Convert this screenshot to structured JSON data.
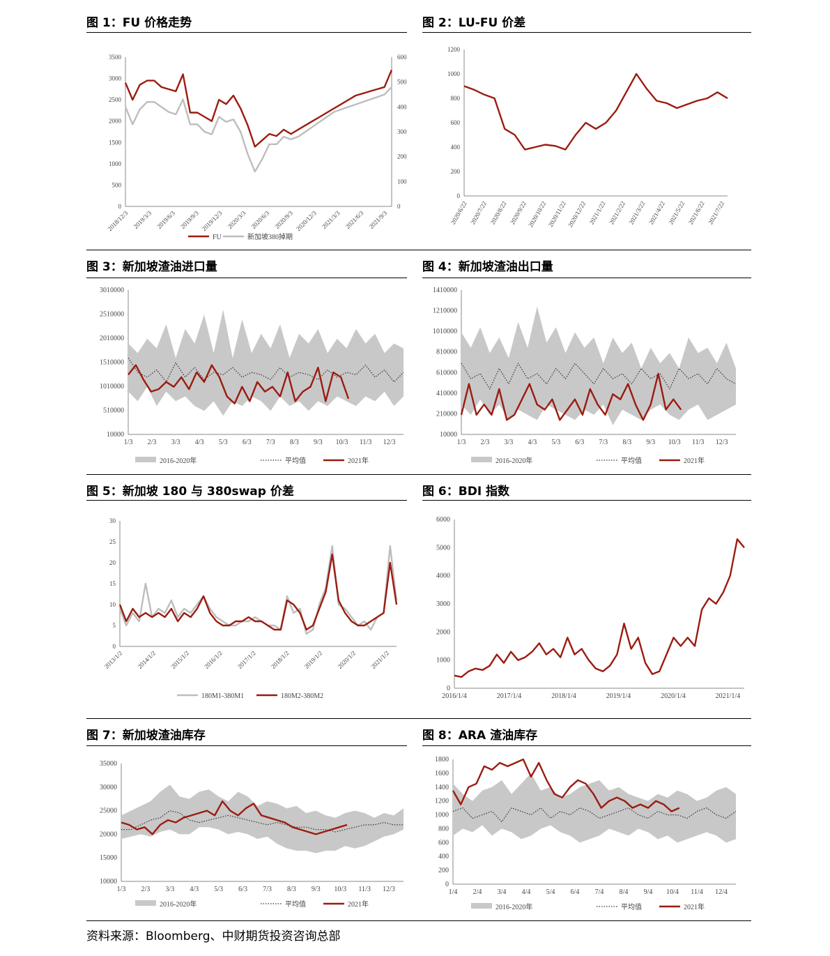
{
  "source": "资料来源：Bloomberg、中财期货投资咨询总部",
  "colors": {
    "red": "#9b1b10",
    "gray": "#bdbdbd",
    "dark": "#333333"
  },
  "chart_data": [
    {
      "id": "c1",
      "type": "line",
      "title": "图 1：FU 价格走势",
      "ylim": [
        0,
        3500
      ],
      "yticks": [
        0,
        500,
        1000,
        1500,
        2000,
        2500,
        3000,
        3500
      ],
      "y2lim": [
        0,
        600
      ],
      "y2ticks": [
        0,
        100,
        200,
        300,
        400,
        500,
        600
      ],
      "xlabels": [
        "2018/12/3",
        "2019/3/3",
        "2019/6/3",
        "2019/9/3",
        "2019/12/3",
        "2020/3/3",
        "2020/6/3",
        "2020/9/3",
        "2020/12/3",
        "2021/3/3",
        "2021/6/3",
        "2021/9/3"
      ],
      "series": [
        {
          "name": "FU",
          "axis": "left",
          "color": "red",
          "values": [
            2900,
            2500,
            2850,
            2950,
            2950,
            2800,
            2750,
            2700,
            3100,
            2200,
            2200,
            2100,
            2000,
            2500,
            2400,
            2600,
            2300,
            1900,
            1400,
            1550,
            1700,
            1650,
            1800,
            1700,
            1800,
            1900,
            2000,
            2100,
            2200,
            2300,
            2400,
            2500,
            2600,
            2650,
            2700,
            2750,
            2800,
            3200
          ]
        },
        {
          "name": "新加坡380掉期",
          "axis": "right",
          "color": "gray",
          "values": [
            400,
            330,
            390,
            420,
            420,
            400,
            380,
            370,
            430,
            330,
            330,
            300,
            290,
            360,
            340,
            350,
            300,
            210,
            140,
            190,
            250,
            250,
            280,
            270,
            280,
            300,
            320,
            340,
            360,
            380,
            390,
            400,
            410,
            420,
            430,
            440,
            450,
            480
          ]
        }
      ]
    },
    {
      "id": "c2",
      "type": "line",
      "title": "图 2：LU-FU 价差",
      "ylim": [
        0,
        1200
      ],
      "yticks": [
        0,
        200,
        400,
        600,
        800,
        1000,
        1200
      ],
      "xlabels": [
        "2020/6/22",
        "2020/7/22",
        "2020/8/22",
        "2020/9/22",
        "2020/10/22",
        "2020/11/22",
        "2020/12/22",
        "2021/1/22",
        "2021/2/22",
        "2021/3/22",
        "2021/4/22",
        "2021/5/22",
        "2021/6/22",
        "2021/7/22"
      ],
      "series": [
        {
          "name": "LU-FU",
          "color": "red",
          "values": [
            900,
            870,
            830,
            800,
            550,
            500,
            380,
            400,
            420,
            410,
            380,
            500,
            600,
            550,
            600,
            700,
            850,
            1000,
            880,
            780,
            760,
            720,
            750,
            780,
            800,
            850,
            800
          ]
        }
      ]
    },
    {
      "id": "c3",
      "type": "area",
      "title": "图 3：新加坡渣油进口量",
      "ylim": [
        10000,
        3010000
      ],
      "yticks": [
        10000,
        510000,
        1010000,
        1510000,
        2010000,
        2510000,
        3010000
      ],
      "xlabels": [
        "1/3",
        "2/3",
        "3/3",
        "4/3",
        "5/3",
        "6/3",
        "7/3",
        "8/3",
        "9/3",
        "10/3",
        "11/3",
        "12/3"
      ],
      "band_upper": [
        1900000,
        1700000,
        2000000,
        1800000,
        2300000,
        1600000,
        2200000,
        1900000,
        2500000,
        1700000,
        2600000,
        1600000,
        2400000,
        1700000,
        2100000,
        1800000,
        2300000,
        1600000,
        2100000,
        1900000,
        2200000,
        1700000,
        2000000,
        1800000,
        2200000,
        1900000,
        2100000,
        1700000,
        1900000,
        1800000
      ],
      "band_lower": [
        900000,
        700000,
        1000000,
        600000,
        900000,
        700000,
        800000,
        600000,
        500000,
        700000,
        400000,
        700000,
        600000,
        800000,
        700000,
        500000,
        800000,
        600000,
        700000,
        500000,
        700000,
        600000,
        800000,
        700000,
        600000,
        800000,
        700000,
        900000,
        600000,
        800000
      ],
      "series": [
        {
          "name": "2016-2020年",
          "role": "band"
        },
        {
          "name": "平均值",
          "color": "dark",
          "dotted": true,
          "values": [
            1600000,
            1300000,
            1200000,
            1350000,
            1100000,
            1500000,
            1200000,
            1400000,
            1150000,
            1300000,
            1250000,
            1400000,
            1200000,
            1300000,
            1250000,
            1150000,
            1400000,
            1200000,
            1300000,
            1250000,
            1150000,
            1350000,
            1200000,
            1300000,
            1250000,
            1450000,
            1200000,
            1350000,
            1100000,
            1300000
          ]
        },
        {
          "name": "2021年",
          "color": "red",
          "values": [
            1250000,
            1450000,
            1150000,
            900000,
            950000,
            1100000,
            1000000,
            1200000,
            950000,
            1300000,
            1100000,
            1450000,
            1200000,
            800000,
            650000,
            1000000,
            700000,
            1100000,
            900000,
            1000000,
            800000,
            1300000,
            700000,
            900000,
            1000000,
            1400000,
            700000,
            1300000,
            1200000,
            750000
          ]
        }
      ]
    },
    {
      "id": "c4",
      "type": "area",
      "title": "图 4：新加坡渣油出口量",
      "ylim": [
        10000,
        1410000
      ],
      "yticks": [
        10000,
        210000,
        410000,
        610000,
        810000,
        1010000,
        1210000,
        1410000
      ],
      "xlabels": [
        "1/3",
        "2/3",
        "3/3",
        "4/3",
        "5/3",
        "6/3",
        "7/3",
        "8/3",
        "9/3",
        "10/3",
        "11/3",
        "12/3"
      ],
      "band_upper": [
        1000000,
        850000,
        1050000,
        800000,
        950000,
        750000,
        1100000,
        850000,
        1250000,
        900000,
        1050000,
        800000,
        1000000,
        850000,
        950000,
        700000,
        950000,
        800000,
        900000,
        650000,
        850000,
        700000,
        800000,
        650000,
        950000,
        800000,
        850000,
        700000,
        900000,
        650000
      ],
      "band_lower": [
        300000,
        200000,
        350000,
        200000,
        300000,
        150000,
        250000,
        200000,
        150000,
        300000,
        250000,
        200000,
        150000,
        250000,
        200000,
        300000,
        100000,
        250000,
        200000,
        150000,
        250000,
        300000,
        200000,
        150000,
        250000,
        300000,
        150000,
        200000,
        250000,
        300000
      ],
      "series": [
        {
          "name": "2016-2020年",
          "role": "band"
        },
        {
          "name": "平均值",
          "color": "dark",
          "dotted": true,
          "values": [
            700000,
            550000,
            600000,
            450000,
            650000,
            500000,
            700000,
            550000,
            600000,
            500000,
            650000,
            550000,
            700000,
            600000,
            500000,
            650000,
            550000,
            600000,
            500000,
            650000,
            550000,
            600000,
            450000,
            650000,
            550000,
            600000,
            500000,
            650000,
            550000,
            500000
          ]
        },
        {
          "name": "2021年",
          "color": "red",
          "values": [
            200000,
            500000,
            200000,
            300000,
            200000,
            450000,
            150000,
            200000,
            350000,
            500000,
            300000,
            250000,
            350000,
            150000,
            250000,
            350000,
            200000,
            450000,
            300000,
            200000,
            400000,
            350000,
            500000,
            300000,
            150000,
            300000,
            600000,
            250000,
            350000,
            250000
          ]
        }
      ]
    },
    {
      "id": "c5",
      "type": "line",
      "title": "图 5：新加坡 180 与 380swap 价差",
      "ylim": [
        0,
        30
      ],
      "yticks": [
        0,
        5,
        10,
        15,
        20,
        25,
        30
      ],
      "xlabels": [
        "2013/1/2",
        "2014/1/2",
        "2015/1/2",
        "2016/1/2",
        "2017/1/2",
        "2018/1/2",
        "2019/1/2",
        "2020/1/2",
        "2021/1/2"
      ],
      "series": [
        {
          "name": "180M1-380M1",
          "color": "gray",
          "values": [
            9,
            5,
            8,
            6,
            15,
            7,
            9,
            8,
            11,
            7,
            9,
            8,
            10,
            12,
            9,
            7,
            6,
            5,
            5,
            6,
            6,
            7,
            6,
            5,
            5,
            4,
            12,
            8,
            9,
            3,
            4,
            10,
            14,
            24,
            10,
            9,
            7,
            5,
            6,
            4,
            7,
            8,
            24,
            11
          ]
        },
        {
          "name": "180M2-380M2",
          "color": "red",
          "values": [
            10,
            6,
            9,
            7,
            8,
            7,
            8,
            7,
            9,
            6,
            8,
            7,
            9,
            12,
            8,
            6,
            5,
            5,
            6,
            6,
            7,
            6,
            6,
            5,
            4,
            4,
            11,
            10,
            8,
            4,
            5,
            9,
            13,
            22,
            11,
            8,
            6,
            5,
            5,
            6,
            7,
            8,
            20,
            10
          ]
        }
      ]
    },
    {
      "id": "c6",
      "type": "line",
      "title": "图 6：BDI 指数",
      "ylim": [
        0,
        6000
      ],
      "yticks": [
        0,
        1000,
        2000,
        3000,
        4000,
        5000,
        6000
      ],
      "xlabels": [
        "2016/1/4",
        "2017/1/4",
        "2018/1/4",
        "2019/1/4",
        "2020/1/4",
        "2021/1/4"
      ],
      "series": [
        {
          "name": "BDI",
          "color": "red",
          "values": [
            450,
            400,
            600,
            700,
            650,
            800,
            1200,
            900,
            1300,
            1000,
            1100,
            1300,
            1600,
            1200,
            1400,
            1100,
            1800,
            1200,
            1400,
            1000,
            700,
            600,
            800,
            1200,
            2300,
            1400,
            1800,
            900,
            500,
            600,
            1200,
            1800,
            1500,
            1800,
            1500,
            2800,
            3200,
            3000,
            3400,
            4000,
            5300,
            5000
          ]
        }
      ]
    },
    {
      "id": "c7",
      "type": "area",
      "title": "图 7：新加坡渣油库存",
      "ylim": [
        10000,
        35000
      ],
      "yticks": [
        10000,
        15000,
        20000,
        25000,
        30000,
        35000
      ],
      "xlabels": [
        "1/3",
        "2/3",
        "3/3",
        "4/3",
        "5/3",
        "6/3",
        "7/3",
        "8/3",
        "9/3",
        "10/3",
        "11/3",
        "12/3"
      ],
      "band_upper": [
        24000,
        25000,
        26000,
        27000,
        29000,
        30500,
        28000,
        27500,
        29000,
        29500,
        28000,
        27000,
        29000,
        28000,
        26000,
        27000,
        26500,
        25500,
        26000,
        24500,
        25000,
        24000,
        23500,
        24500,
        25000,
        24500,
        23500,
        24500,
        24000,
        25500
      ],
      "band_lower": [
        19000,
        19500,
        20000,
        19500,
        20500,
        21000,
        20000,
        20000,
        21500,
        21500,
        21000,
        20000,
        20500,
        20000,
        19000,
        19500,
        18000,
        17000,
        16500,
        16500,
        16000,
        16500,
        16500,
        17500,
        17000,
        17500,
        18500,
        19500,
        20000,
        21000
      ],
      "series": [
        {
          "name": "2016-2020年",
          "role": "band"
        },
        {
          "name": "平均值",
          "color": "dark",
          "dotted": true,
          "values": [
            21000,
            21000,
            22000,
            23000,
            23500,
            25000,
            24500,
            23000,
            22500,
            23000,
            23500,
            24000,
            23500,
            23000,
            22500,
            22000,
            22500,
            22000,
            21500,
            21500,
            21000,
            21000,
            20500,
            21000,
            21500,
            22000,
            22000,
            22500,
            22000,
            22000
          ]
        },
        {
          "name": "2021年",
          "color": "red",
          "values": [
            22500,
            22000,
            21000,
            21500,
            20000,
            22000,
            23000,
            22500,
            23500,
            24000,
            24500,
            25000,
            24000,
            27000,
            25000,
            24000,
            25500,
            26500,
            24000,
            23500,
            23000,
            22500,
            21500,
            21000,
            20500,
            20000,
            20500,
            21000,
            21500,
            22000
          ]
        }
      ]
    },
    {
      "id": "c8",
      "type": "area",
      "title": "图 8：ARA 渣油库存",
      "ylim": [
        0,
        1800
      ],
      "yticks": [
        0,
        200,
        400,
        600,
        800,
        1000,
        1200,
        1400,
        1600,
        1800
      ],
      "xlabels": [
        "1/4",
        "2/4",
        "3/4",
        "4/4",
        "5/4",
        "6/4",
        "7/4",
        "8/4",
        "9/4",
        "10/4",
        "11/4",
        "12/4"
      ],
      "band_upper": [
        1450,
        1300,
        1200,
        1350,
        1400,
        1500,
        1300,
        1450,
        1600,
        1350,
        1400,
        1250,
        1300,
        1400,
        1450,
        1500,
        1350,
        1400,
        1300,
        1250,
        1200,
        1300,
        1250,
        1350,
        1300,
        1200,
        1250,
        1350,
        1400,
        1300
      ],
      "band_lower": [
        700,
        800,
        750,
        850,
        700,
        800,
        750,
        650,
        700,
        800,
        850,
        750,
        700,
        600,
        650,
        700,
        800,
        750,
        700,
        800,
        750,
        650,
        700,
        600,
        650,
        700,
        750,
        700,
        600,
        650
      ],
      "series": [
        {
          "name": "2016-2020年",
          "role": "band"
        },
        {
          "name": "平均值",
          "color": "dark",
          "dotted": true,
          "values": [
            1050,
            1100,
            950,
            1000,
            1050,
            900,
            1100,
            1050,
            1000,
            1100,
            950,
            1050,
            1000,
            1100,
            1050,
            950,
            1000,
            1050,
            1100,
            1000,
            950,
            1050,
            1000,
            1000,
            950,
            1050,
            1100,
            1000,
            950,
            1050
          ]
        },
        {
          "name": "2021年",
          "color": "red",
          "values": [
            1350,
            1150,
            1400,
            1450,
            1700,
            1650,
            1750,
            1700,
            1750,
            1800,
            1550,
            1750,
            1500,
            1300,
            1250,
            1400,
            1500,
            1450,
            1300,
            1100,
            1200,
            1250,
            1200,
            1100,
            1150,
            1100,
            1200,
            1150,
            1050,
            1100
          ]
        }
      ]
    }
  ]
}
